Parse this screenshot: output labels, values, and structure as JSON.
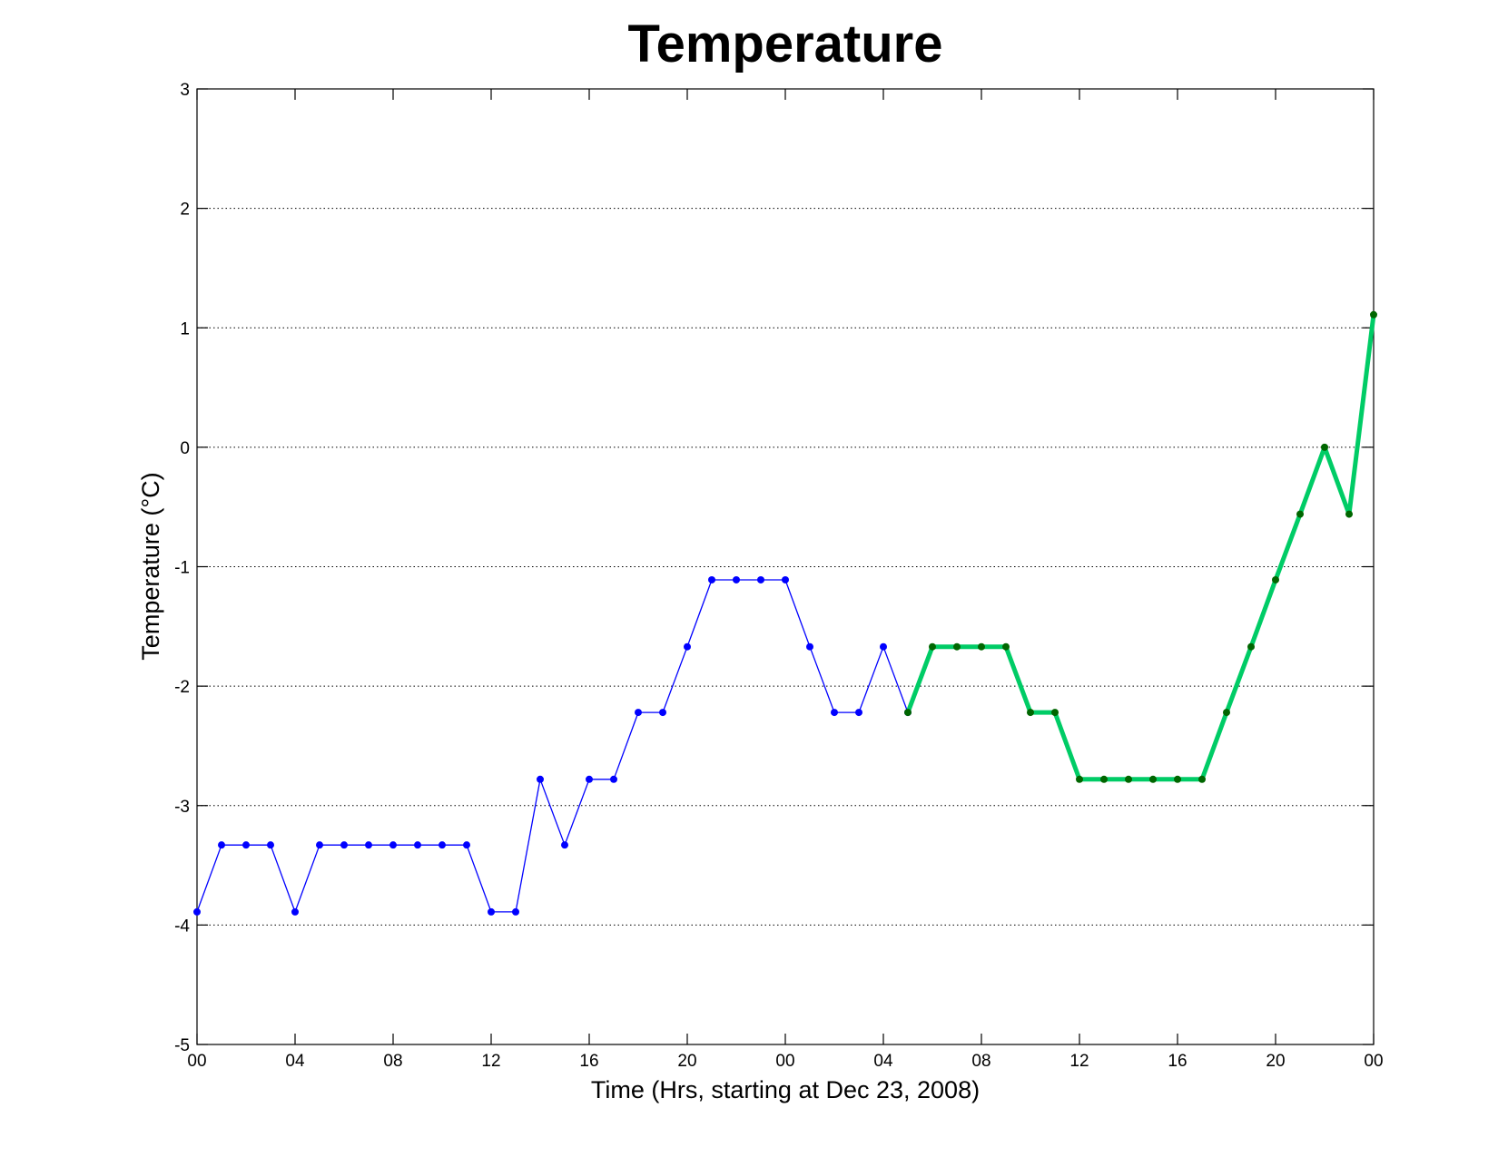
{
  "chart_data": {
    "type": "line",
    "title": "Temperature",
    "xlabel": "Time (Hrs, starting at Dec 23, 2008)",
    "ylabel": "Temperature (°C)",
    "ylim": [
      -5,
      3
    ],
    "xlim": [
      0,
      48
    ],
    "grid": "horizontal-dotted",
    "x_ticks": [
      "00",
      "04",
      "08",
      "12",
      "16",
      "20",
      "00",
      "04",
      "08",
      "12",
      "16",
      "20",
      "00"
    ],
    "y_ticks": [
      "-5",
      "-4",
      "-3",
      "-2",
      "-1",
      "0",
      "1",
      "2",
      "3"
    ],
    "series": [
      {
        "color": "#0000ff",
        "line_style": "thin",
        "x": [
          0,
          1,
          2,
          3,
          4,
          5,
          6,
          7,
          8,
          9,
          10,
          11,
          12,
          13,
          14,
          15,
          16,
          17,
          18,
          19,
          20,
          21,
          22,
          23,
          24,
          25,
          26,
          27,
          28,
          29
        ],
        "values": [
          -3.89,
          -3.33,
          -3.33,
          -3.33,
          -3.89,
          -3.33,
          -3.33,
          -3.33,
          -3.33,
          -3.33,
          -3.33,
          -3.33,
          -3.89,
          -3.89,
          -2.78,
          -3.33,
          -2.78,
          -2.78,
          -2.22,
          -2.22,
          -1.67,
          -1.11,
          -1.11,
          -1.11,
          -1.11,
          -1.67,
          -2.22,
          -2.22,
          -1.67,
          -2.22
        ]
      },
      {
        "color": "#00cc66",
        "marker_color": "#006600",
        "line_style": "thick",
        "x": [
          29,
          30,
          31,
          32,
          33,
          34,
          35,
          36,
          37,
          38,
          39,
          40,
          41,
          42,
          43,
          44,
          45,
          46,
          47,
          48
        ],
        "values": [
          -2.22,
          -1.67,
          -1.67,
          -1.67,
          -1.67,
          -2.22,
          -2.22,
          -2.78,
          -2.78,
          -2.78,
          -2.78,
          -2.78,
          -2.78,
          -2.22,
          -1.67,
          -1.11,
          -0.56,
          0.0,
          -0.56,
          1.11
        ]
      }
    ]
  }
}
